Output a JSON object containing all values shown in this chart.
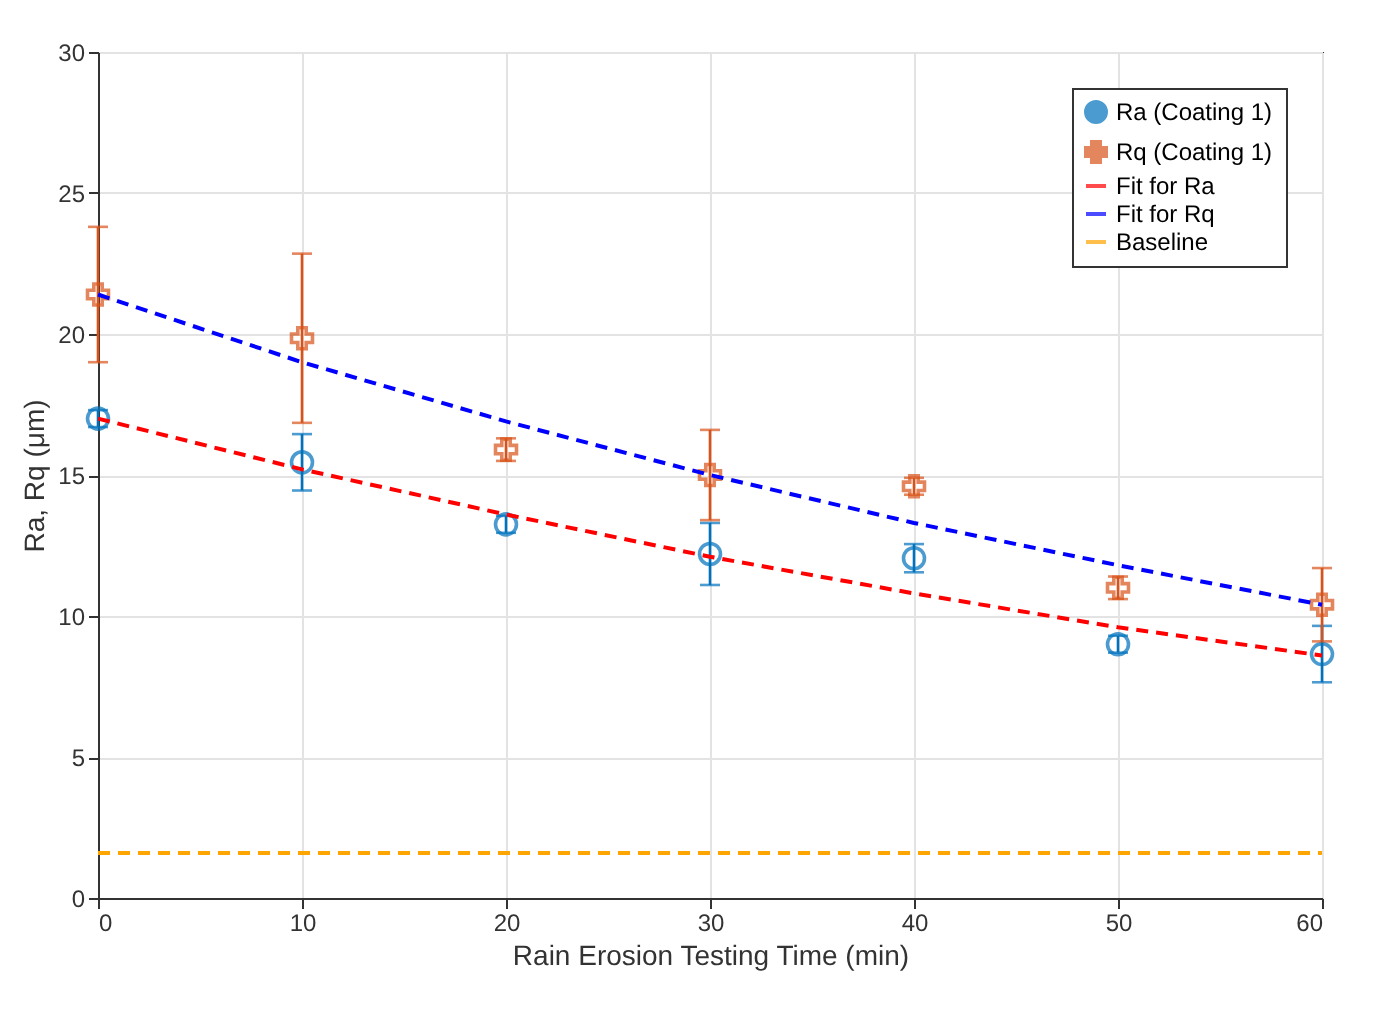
{
  "chart_data": {
    "type": "scatter",
    "xlabel": "Rain Erosion Testing Time (min)",
    "ylabel": "Ra, Rq (μm)",
    "x": [
      0,
      10,
      20,
      30,
      40,
      50,
      60
    ],
    "series": [
      {
        "name": "Ra (Coating 1)",
        "marker": "circle",
        "color": "#0072bd",
        "values": [
          17.0,
          15.45,
          13.25,
          12.2,
          12.05,
          9.0,
          8.65
        ],
        "errors": [
          0.3,
          1.0,
          0.3,
          1.1,
          0.5,
          0.3,
          1.0
        ]
      },
      {
        "name": "Rq (Coating 1)",
        "marker": "cross",
        "color": "#d95319",
        "values": [
          21.4,
          19.85,
          15.9,
          15.0,
          14.6,
          11.0,
          10.4
        ],
        "errors": [
          2.4,
          3.0,
          0.4,
          1.6,
          0.3,
          0.4,
          1.3
        ]
      },
      {
        "name": "Fit for Ra",
        "type": "line",
        "line_style": "dashed",
        "color": "#ff0000",
        "values": [
          17.0,
          15.2,
          13.6,
          12.1,
          10.8,
          9.6,
          8.6
        ]
      },
      {
        "name": "Fit for Rq",
        "type": "line",
        "line_style": "dashed",
        "color": "#0000ff",
        "values": [
          21.4,
          19.0,
          16.9,
          15.0,
          13.3,
          11.8,
          10.4
        ]
      },
      {
        "name": "Baseline",
        "type": "line",
        "line_style": "dashed",
        "color": "#ffa500",
        "values": [
          1.6,
          1.6,
          1.6,
          1.6,
          1.6,
          1.6,
          1.6
        ]
      }
    ],
    "xlim": [
      0,
      60
    ],
    "xticks": [
      0,
      10,
      20,
      30,
      40,
      50,
      60
    ],
    "ylim": [
      0,
      30
    ],
    "yticks": [
      0,
      5,
      10,
      15,
      20,
      25,
      30
    ],
    "grid": true,
    "legend": "top right"
  }
}
